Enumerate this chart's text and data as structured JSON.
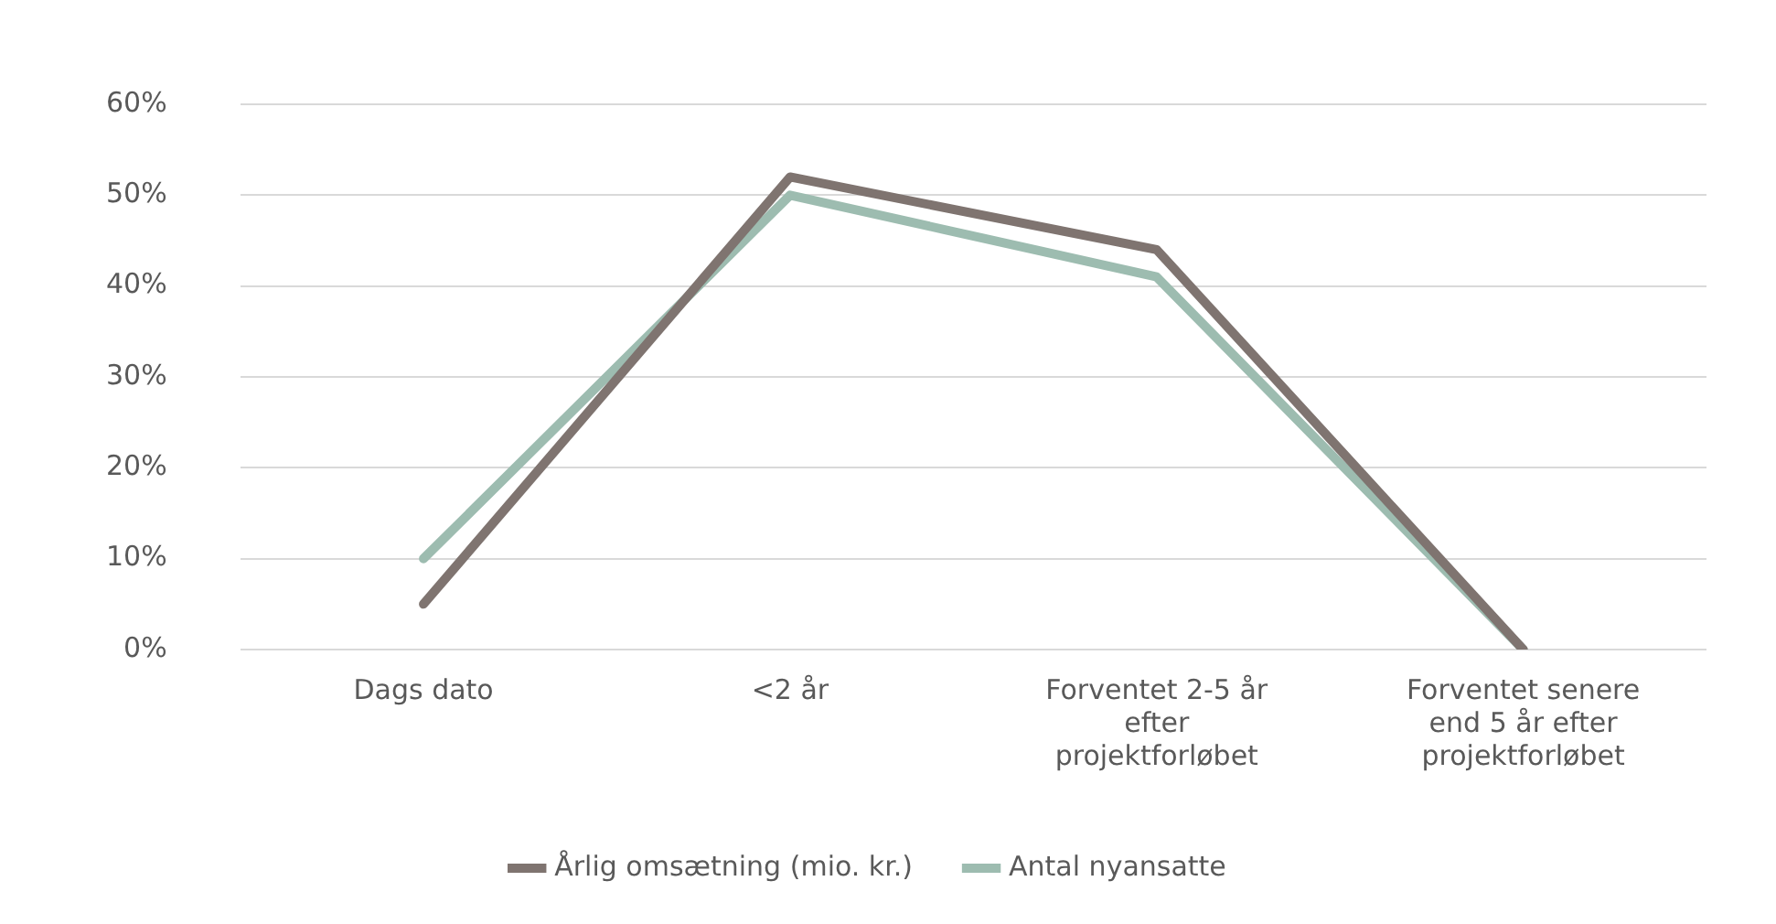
{
  "chart_data": {
    "type": "line",
    "categories": [
      "Dags dato",
      "<2 år",
      "Forventet 2-5 år efter projektforløbet",
      "Forventet senere end 5 år efter projektforløbet"
    ],
    "series": [
      {
        "name": "Årlig omsætning (mio. kr.)",
        "color": "#7f7470",
        "values": [
          5,
          52,
          44,
          0
        ]
      },
      {
        "name": "Antal nyansatte",
        "color": "#9dbcb0",
        "values": [
          10,
          50,
          41,
          0
        ]
      }
    ],
    "ylim": [
      0,
      60
    ],
    "yticks": [
      {
        "value": 0,
        "label": "0%"
      },
      {
        "value": 10,
        "label": "10%"
      },
      {
        "value": 20,
        "label": "20%"
      },
      {
        "value": 30,
        "label": "30%"
      },
      {
        "value": 40,
        "label": "40%"
      },
      {
        "value": 50,
        "label": "50%"
      },
      {
        "value": 60,
        "label": "60%"
      }
    ],
    "grid": "y",
    "legend": "bottom",
    "marker": "none",
    "line_style": "solid"
  }
}
